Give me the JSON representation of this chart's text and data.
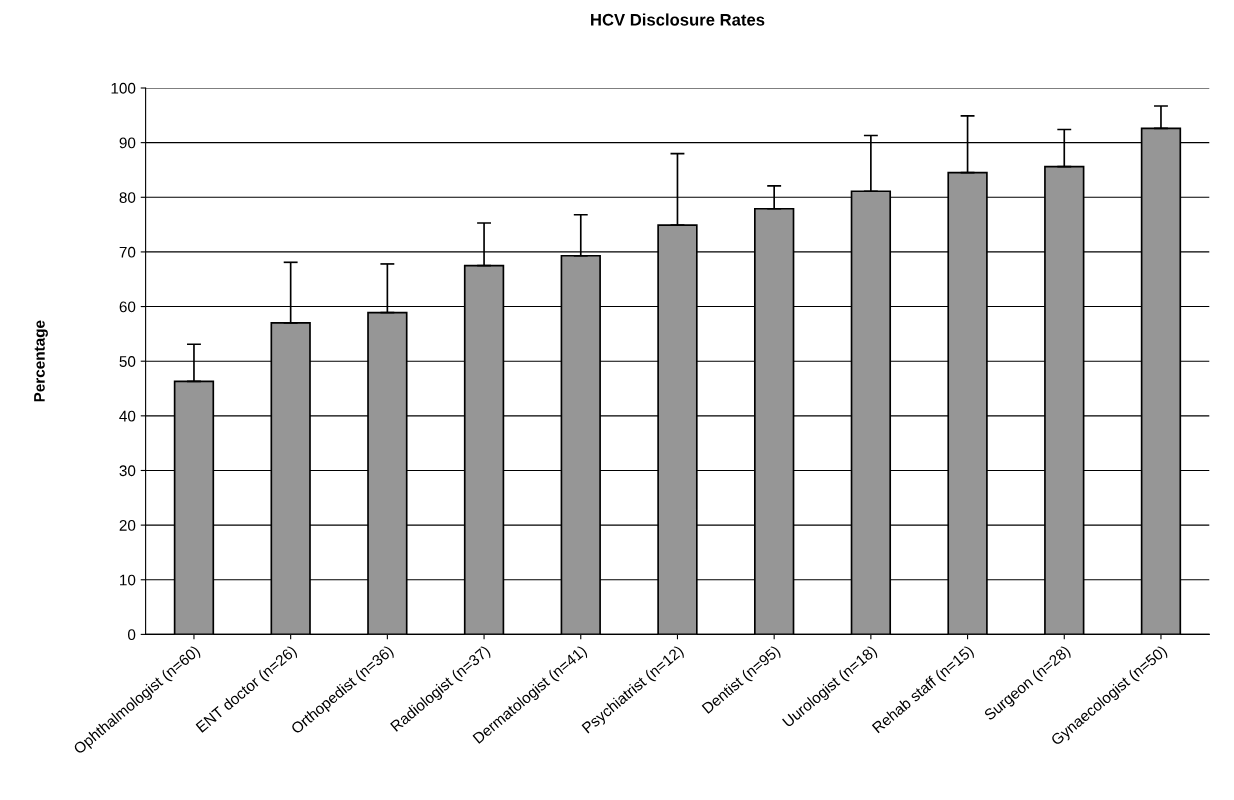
{
  "chart_data": {
    "type": "bar",
    "title": "HCV Disclosure Rates",
    "ylabel": "Percentage",
    "categories": [
      "Ophthalmologist (n=60)",
      "ENT doctor (n=26)",
      "Orthopedist (n=36)",
      "Radiologist (n=37)",
      "Dermatologist (n=41)",
      "Psychiatrist (n=12)",
      "Dentist (n=95)",
      "Uurologist (n=18)",
      "Rehab staff (n=15)",
      "Surgeon (n=28)",
      "Gynaecologist (n=50)"
    ],
    "values": [
      46.3,
      57.0,
      58.9,
      67.5,
      69.3,
      74.9,
      77.9,
      81.1,
      84.5,
      85.6,
      92.6
    ],
    "errors": [
      [
        46.3,
        53.1
      ],
      [
        57.0,
        68.1
      ],
      [
        58.9,
        67.8
      ],
      [
        67.5,
        75.3
      ],
      [
        69.3,
        76.8
      ],
      [
        74.9,
        88.0
      ],
      [
        77.9,
        82.1
      ],
      [
        81.1,
        91.3
      ],
      [
        84.5,
        94.9
      ],
      [
        85.6,
        92.4
      ],
      [
        92.6,
        96.7
      ]
    ],
    "color": "#969696",
    "ylim": [
      0,
      100
    ],
    "yticks": [
      0,
      10,
      20,
      30,
      40,
      50,
      60,
      70,
      80,
      90,
      100
    ],
    "grid": "y",
    "legend": false
  }
}
